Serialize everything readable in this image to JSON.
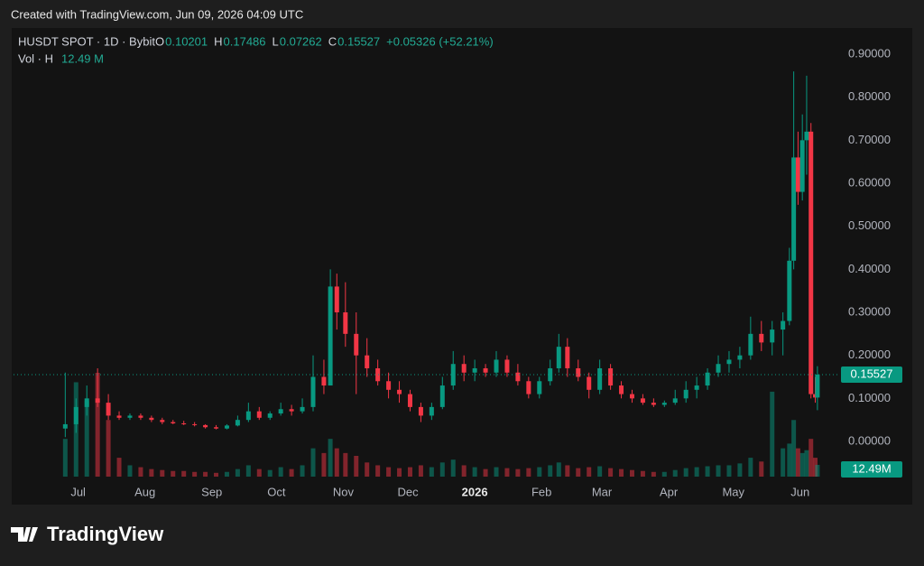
{
  "header": "Created with TradingView.com, Jun 09, 2026 04:09 UTC",
  "branding": "TradingView",
  "chart_data": {
    "type": "candlestick",
    "title": "HUSDT SPOT · 1D · Bybit",
    "ohlc_labels": [
      "O",
      "H",
      "L",
      "C"
    ],
    "change": "+0.05326 (+52.21%)",
    "volume_legend": "Vol · H",
    "volume_value_label": "12.49 M",
    "volume_tag_label": "12.49M",
    "up_color": "#089981",
    "down_color": "#f23645",
    "grid": false,
    "x": [
      0,
      5,
      10,
      15,
      20,
      25,
      30,
      35,
      40,
      45,
      50,
      55,
      60,
      65,
      70,
      75,
      80,
      85,
      90,
      95,
      100,
      105,
      110,
      115,
      120,
      123,
      126,
      130,
      135,
      140,
      145,
      150,
      155,
      160,
      165,
      170,
      175,
      180,
      185,
      190,
      195,
      200,
      205,
      210,
      215,
      220,
      225,
      229,
      233,
      238,
      243,
      248,
      253,
      258,
      263,
      268,
      273,
      278,
      283,
      288,
      293,
      298,
      303,
      308,
      313,
      318,
      323,
      328,
      333,
      336,
      338,
      340,
      342,
      344,
      346,
      348,
      349
    ],
    "open": [
      0.03,
      0.04,
      0.08,
      0.1,
      0.09,
      0.06,
      0.055,
      0.06,
      0.055,
      0.05,
      0.045,
      0.042,
      0.04,
      0.038,
      0.033,
      0.03,
      0.037,
      0.05,
      0.07,
      0.055,
      0.065,
      0.075,
      0.07,
      0.08,
      0.15,
      0.13,
      0.36,
      0.3,
      0.25,
      0.2,
      0.17,
      0.14,
      0.12,
      0.11,
      0.08,
      0.06,
      0.08,
      0.13,
      0.18,
      0.16,
      0.17,
      0.16,
      0.19,
      0.16,
      0.14,
      0.11,
      0.14,
      0.17,
      0.22,
      0.17,
      0.15,
      0.12,
      0.17,
      0.13,
      0.11,
      0.1,
      0.09,
      0.085,
      0.09,
      0.1,
      0.12,
      0.13,
      0.16,
      0.18,
      0.19,
      0.2,
      0.25,
      0.23,
      0.26,
      0.28,
      0.42,
      0.66,
      0.58,
      0.7,
      0.72,
      0.11,
      0.10201
    ],
    "high": [
      0.16,
      0.1,
      0.13,
      0.17,
      0.11,
      0.07,
      0.065,
      0.065,
      0.06,
      0.055,
      0.05,
      0.048,
      0.045,
      0.04,
      0.038,
      0.04,
      0.06,
      0.09,
      0.08,
      0.07,
      0.09,
      0.085,
      0.1,
      0.2,
      0.19,
      0.4,
      0.39,
      0.37,
      0.3,
      0.24,
      0.19,
      0.16,
      0.14,
      0.12,
      0.09,
      0.09,
      0.15,
      0.21,
      0.2,
      0.19,
      0.18,
      0.21,
      0.2,
      0.18,
      0.15,
      0.15,
      0.19,
      0.25,
      0.24,
      0.19,
      0.16,
      0.19,
      0.18,
      0.14,
      0.12,
      0.11,
      0.1,
      0.095,
      0.12,
      0.14,
      0.15,
      0.17,
      0.2,
      0.21,
      0.22,
      0.29,
      0.28,
      0.28,
      0.3,
      0.45,
      0.86,
      0.72,
      0.76,
      0.85,
      0.74,
      0.15,
      0.17486
    ],
    "low": [
      0.01,
      0.02,
      0.06,
      0.08,
      0.05,
      0.05,
      0.05,
      0.05,
      0.045,
      0.04,
      0.04,
      0.038,
      0.035,
      0.03,
      0.028,
      0.028,
      0.035,
      0.045,
      0.05,
      0.05,
      0.06,
      0.06,
      0.065,
      0.07,
      0.11,
      0.13,
      0.26,
      0.22,
      0.11,
      0.15,
      0.13,
      0.1,
      0.09,
      0.07,
      0.045,
      0.05,
      0.075,
      0.12,
      0.14,
      0.14,
      0.15,
      0.15,
      0.15,
      0.13,
      0.1,
      0.1,
      0.13,
      0.16,
      0.15,
      0.14,
      0.1,
      0.11,
      0.12,
      0.1,
      0.09,
      0.085,
      0.08,
      0.08,
      0.085,
      0.09,
      0.1,
      0.12,
      0.15,
      0.16,
      0.17,
      0.19,
      0.21,
      0.2,
      0.2,
      0.27,
      0.4,
      0.55,
      0.56,
      0.62,
      0.1,
      0.09,
      0.07262
    ],
    "close": [
      0.04,
      0.08,
      0.1,
      0.09,
      0.06,
      0.055,
      0.06,
      0.055,
      0.05,
      0.045,
      0.042,
      0.04,
      0.038,
      0.033,
      0.03,
      0.037,
      0.05,
      0.07,
      0.055,
      0.065,
      0.075,
      0.07,
      0.08,
      0.15,
      0.13,
      0.36,
      0.3,
      0.25,
      0.2,
      0.17,
      0.14,
      0.12,
      0.11,
      0.08,
      0.06,
      0.08,
      0.13,
      0.18,
      0.16,
      0.17,
      0.16,
      0.19,
      0.16,
      0.14,
      0.11,
      0.14,
      0.17,
      0.22,
      0.17,
      0.15,
      0.12,
      0.17,
      0.13,
      0.11,
      0.1,
      0.09,
      0.085,
      0.09,
      0.1,
      0.12,
      0.13,
      0.16,
      0.18,
      0.19,
      0.2,
      0.25,
      0.23,
      0.26,
      0.28,
      0.42,
      0.66,
      0.58,
      0.7,
      0.72,
      0.11,
      0.10201,
      0.15527
    ],
    "volume": [
      40,
      100,
      80,
      110,
      60,
      20,
      12,
      10,
      8,
      7,
      6,
      6,
      5,
      5,
      4,
      5,
      8,
      12,
      8,
      7,
      10,
      8,
      12,
      30,
      25,
      40,
      30,
      25,
      22,
      15,
      12,
      10,
      9,
      10,
      12,
      10,
      15,
      18,
      12,
      10,
      8,
      10,
      9,
      8,
      9,
      10,
      12,
      15,
      12,
      9,
      10,
      11,
      9,
      8,
      7,
      6,
      5,
      5,
      7,
      9,
      10,
      11,
      12,
      12,
      14,
      20,
      16,
      90,
      30,
      35,
      60,
      30,
      25,
      28,
      40,
      20,
      12.49
    ],
    "xlim": [
      -24,
      357
    ],
    "xticks": [
      {
        "value": 6,
        "label": "Jul"
      },
      {
        "value": 37,
        "label": "Aug"
      },
      {
        "value": 68,
        "label": "Sep"
      },
      {
        "value": 98,
        "label": "Oct"
      },
      {
        "value": 129,
        "label": "Nov"
      },
      {
        "value": 159,
        "label": "Dec"
      },
      {
        "value": 190,
        "label": "2026"
      },
      {
        "value": 221,
        "label": "Feb"
      },
      {
        "value": 249,
        "label": "Mar"
      },
      {
        "value": 280,
        "label": "Apr"
      },
      {
        "value": 310,
        "label": "May"
      },
      {
        "value": 341,
        "label": "Jun"
      }
    ],
    "ylim": [
      -0.086,
      0.963
    ],
    "yticks": [
      {
        "value": 0,
        "label": "0.00000"
      },
      {
        "value": 0.1,
        "label": "0.10000"
      },
      {
        "value": 0.2,
        "label": "0.20000"
      },
      {
        "value": 0.3,
        "label": "0.30000"
      },
      {
        "value": 0.4,
        "label": "0.40000"
      },
      {
        "value": 0.5,
        "label": "0.50000"
      },
      {
        "value": 0.6,
        "label": "0.60000"
      },
      {
        "value": 0.7,
        "label": "0.70000"
      },
      {
        "value": 0.8,
        "label": "0.80000"
      },
      {
        "value": 0.9,
        "label": "0.90000"
      }
    ]
  }
}
